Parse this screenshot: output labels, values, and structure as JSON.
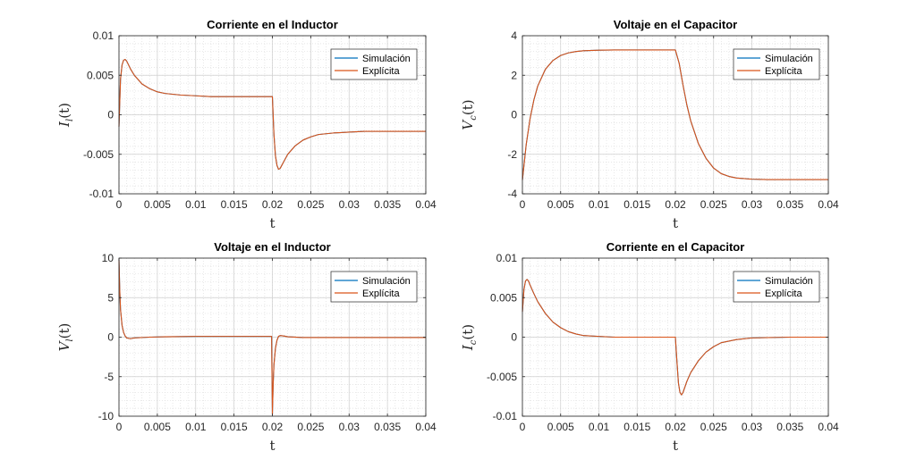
{
  "legend_labels": [
    "Simulación",
    "Explícita"
  ],
  "colors": {
    "series_1": "#0072bd",
    "series_2": "#d95319"
  },
  "chart_data": [
    {
      "type": "line",
      "title": "Corriente en el Inductor",
      "xlabel": "t",
      "ylabel": {
        "main": "I",
        "sub": "l",
        "arg": "(t)"
      },
      "xlim": [
        0,
        0.04
      ],
      "ylim": [
        -0.01,
        0.01
      ],
      "xticks": [
        0,
        0.005,
        0.01,
        0.015,
        0.02,
        0.025,
        0.03,
        0.035,
        0.04
      ],
      "xtick_labels": [
        "0",
        "0.005",
        "0.01",
        "0.015",
        "0.02",
        "0.025",
        "0.03",
        "0.035",
        "0.04"
      ],
      "yticks": [
        -0.01,
        -0.005,
        0,
        0.005,
        0.01
      ],
      "ytick_labels": [
        "-0.01",
        "-0.005",
        "0",
        "0.005",
        "0.01"
      ],
      "grid": true,
      "minor_grid": true,
      "legend_position": "top-right",
      "series": [
        {
          "name": "Simulación",
          "x": [
            0,
            0.0002,
            0.0004,
            0.0006,
            0.0008,
            0.001,
            0.0015,
            0.002,
            0.003,
            0.004,
            0.005,
            0.006,
            0.008,
            0.01,
            0.012,
            0.015,
            0.0199,
            0.02,
            0.0202,
            0.0204,
            0.0206,
            0.0208,
            0.021,
            0.0215,
            0.022,
            0.023,
            0.024,
            0.025,
            0.026,
            0.028,
            0.03,
            0.032,
            0.035,
            0.04
          ],
          "y": [
            -0.0015,
            0.0045,
            0.0063,
            0.0069,
            0.007,
            0.0068,
            0.0058,
            0.005,
            0.0039,
            0.0033,
            0.0029,
            0.0027,
            0.0025,
            0.0024,
            0.0023,
            0.0023,
            0.0023,
            0.0023,
            -0.0025,
            -0.0052,
            -0.0064,
            -0.0069,
            -0.0068,
            -0.0059,
            -0.005,
            -0.0039,
            -0.0032,
            -0.0028,
            -0.0025,
            -0.0023,
            -0.0022,
            -0.0021,
            -0.0021,
            -0.0021
          ]
        },
        {
          "name": "Explícita",
          "x": [
            0,
            0.0002,
            0.0004,
            0.0006,
            0.0008,
            0.001,
            0.0015,
            0.002,
            0.003,
            0.004,
            0.005,
            0.006,
            0.008,
            0.01,
            0.012,
            0.015,
            0.0199,
            0.02,
            0.0202,
            0.0204,
            0.0206,
            0.0208,
            0.021,
            0.0215,
            0.022,
            0.023,
            0.024,
            0.025,
            0.026,
            0.028,
            0.03,
            0.032,
            0.035,
            0.04
          ],
          "y": [
            -0.0015,
            0.0045,
            0.0063,
            0.0069,
            0.007,
            0.0068,
            0.0058,
            0.005,
            0.0039,
            0.0033,
            0.0029,
            0.0027,
            0.0025,
            0.0024,
            0.0023,
            0.0023,
            0.0023,
            0.0023,
            -0.0025,
            -0.0052,
            -0.0064,
            -0.0069,
            -0.0068,
            -0.0059,
            -0.005,
            -0.0039,
            -0.0032,
            -0.0028,
            -0.0025,
            -0.0023,
            -0.0022,
            -0.0021,
            -0.0021,
            -0.0021
          ]
        }
      ]
    },
    {
      "type": "line",
      "title": "Voltaje en el Capacitor",
      "xlabel": "t",
      "ylabel": {
        "main": "V",
        "sub": "c",
        "arg": "(t)"
      },
      "xlim": [
        0,
        0.04
      ],
      "ylim": [
        -4,
        4
      ],
      "xticks": [
        0,
        0.005,
        0.01,
        0.015,
        0.02,
        0.025,
        0.03,
        0.035,
        0.04
      ],
      "xtick_labels": [
        "0",
        "0.005",
        "0.01",
        "0.015",
        "0.02",
        "0.025",
        "0.03",
        "0.035",
        "0.04"
      ],
      "yticks": [
        -4,
        -2,
        0,
        2,
        4
      ],
      "ytick_labels": [
        "-4",
        "-2",
        "0",
        "2",
        "4"
      ],
      "grid": true,
      "minor_grid": true,
      "legend_position": "top-right",
      "series": [
        {
          "name": "Simulación",
          "x": [
            0,
            0.0005,
            0.001,
            0.0015,
            0.002,
            0.003,
            0.004,
            0.005,
            0.006,
            0.007,
            0.008,
            0.01,
            0.012,
            0.015,
            0.0199,
            0.02,
            0.0205,
            0.021,
            0.0215,
            0.022,
            0.023,
            0.024,
            0.025,
            0.026,
            0.027,
            0.028,
            0.03,
            0.032,
            0.035,
            0.04
          ],
          "y": [
            -3.3,
            -1.5,
            -0.2,
            0.75,
            1.45,
            2.3,
            2.75,
            3.0,
            3.13,
            3.2,
            3.24,
            3.27,
            3.28,
            3.28,
            3.28,
            3.28,
            2.6,
            1.5,
            0.5,
            -0.3,
            -1.45,
            -2.2,
            -2.7,
            -2.98,
            -3.12,
            -3.2,
            -3.26,
            -3.28,
            -3.28,
            -3.28
          ]
        },
        {
          "name": "Explícita",
          "x": [
            0,
            0.0005,
            0.001,
            0.0015,
            0.002,
            0.003,
            0.004,
            0.005,
            0.006,
            0.007,
            0.008,
            0.01,
            0.012,
            0.015,
            0.0199,
            0.02,
            0.0205,
            0.021,
            0.0215,
            0.022,
            0.023,
            0.024,
            0.025,
            0.026,
            0.027,
            0.028,
            0.03,
            0.032,
            0.035,
            0.04
          ],
          "y": [
            -3.3,
            -1.5,
            -0.2,
            0.75,
            1.45,
            2.3,
            2.75,
            3.0,
            3.13,
            3.2,
            3.24,
            3.27,
            3.28,
            3.28,
            3.28,
            3.28,
            2.6,
            1.5,
            0.5,
            -0.3,
            -1.45,
            -2.2,
            -2.7,
            -2.98,
            -3.12,
            -3.2,
            -3.26,
            -3.28,
            -3.28,
            -3.28
          ]
        }
      ]
    },
    {
      "type": "line",
      "title": "Voltaje en el Inductor",
      "xlabel": "t",
      "ylabel": {
        "main": "V",
        "sub": "l",
        "arg": "(t)"
      },
      "xlim": [
        0,
        0.04
      ],
      "ylim": [
        -10,
        10
      ],
      "xticks": [
        0,
        0.005,
        0.01,
        0.015,
        0.02,
        0.025,
        0.03,
        0.035,
        0.04
      ],
      "xtick_labels": [
        "0",
        "0.005",
        "0.01",
        "0.015",
        "0.02",
        "0.025",
        "0.03",
        "0.035",
        "0.04"
      ],
      "yticks": [
        -10,
        -5,
        0,
        5,
        10
      ],
      "ytick_labels": [
        "-10",
        "-5",
        "0",
        "5",
        "10"
      ],
      "grid": true,
      "minor_grid": true,
      "legend_position": "top-right",
      "series": [
        {
          "name": "Simulación",
          "x": [
            0,
            0.0001,
            0.0002,
            0.0004,
            0.0006,
            0.0008,
            0.001,
            0.0015,
            0.002,
            0.004,
            0.006,
            0.01,
            0.015,
            0.0199,
            0.02,
            0.0201,
            0.0202,
            0.0204,
            0.0206,
            0.0208,
            0.021,
            0.0215,
            0.022,
            0.024,
            0.026,
            0.03,
            0.035,
            0.04
          ],
          "y": [
            9.8,
            6.0,
            3.5,
            1.5,
            0.6,
            0.15,
            -0.1,
            -0.2,
            -0.1,
            0.0,
            0.05,
            0.1,
            0.1,
            0.1,
            -9.8,
            -6.0,
            -3.5,
            -1.4,
            -0.4,
            0.1,
            0.2,
            0.15,
            0.05,
            -0.05,
            -0.05,
            -0.05,
            -0.05,
            -0.05
          ]
        },
        {
          "name": "Explícita",
          "x": [
            0,
            0.0001,
            0.0002,
            0.0004,
            0.0006,
            0.0008,
            0.001,
            0.0015,
            0.002,
            0.004,
            0.006,
            0.01,
            0.015,
            0.0199,
            0.02,
            0.0201,
            0.0202,
            0.0204,
            0.0206,
            0.0208,
            0.021,
            0.0215,
            0.022,
            0.024,
            0.026,
            0.03,
            0.035,
            0.04
          ],
          "y": [
            9.8,
            6.0,
            3.5,
            1.5,
            0.6,
            0.15,
            -0.1,
            -0.2,
            -0.1,
            0.0,
            0.05,
            0.1,
            0.1,
            0.1,
            -9.8,
            -6.0,
            -3.5,
            -1.4,
            -0.4,
            0.1,
            0.2,
            0.15,
            0.05,
            -0.05,
            -0.05,
            -0.05,
            -0.05,
            -0.05
          ]
        }
      ]
    },
    {
      "type": "line",
      "title": "Corriente en el Capacitor",
      "xlabel": "t",
      "ylabel": {
        "main": "I",
        "sub": "c",
        "arg": "(t)"
      },
      "xlim": [
        0,
        0.04
      ],
      "ylim": [
        -0.01,
        0.01
      ],
      "xticks": [
        0,
        0.005,
        0.01,
        0.015,
        0.02,
        0.025,
        0.03,
        0.035,
        0.04
      ],
      "xtick_labels": [
        "0",
        "0.005",
        "0.01",
        "0.015",
        "0.02",
        "0.025",
        "0.03",
        "0.035",
        "0.04"
      ],
      "yticks": [
        -0.01,
        -0.005,
        0,
        0.005,
        0.01
      ],
      "ytick_labels": [
        "-0.01",
        "-0.005",
        "0",
        "0.005",
        "0.01"
      ],
      "grid": true,
      "minor_grid": true,
      "legend_position": "top-right",
      "series": [
        {
          "name": "Simulación",
          "x": [
            0,
            0.0002,
            0.0004,
            0.0006,
            0.0008,
            0.001,
            0.0015,
            0.002,
            0.003,
            0.004,
            0.005,
            0.006,
            0.007,
            0.008,
            0.01,
            0.012,
            0.015,
            0.0199,
            0.02,
            0.0202,
            0.0204,
            0.0206,
            0.0208,
            0.021,
            0.0215,
            0.022,
            0.023,
            0.024,
            0.025,
            0.026,
            0.028,
            0.03,
            0.035,
            0.04
          ],
          "y": [
            0.0032,
            0.006,
            0.0071,
            0.0073,
            0.0071,
            0.0066,
            0.0055,
            0.0045,
            0.003,
            0.0019,
            0.0012,
            0.0007,
            0.0004,
            0.0002,
            0.0001,
            0.0,
            0.0,
            0.0,
            0.0,
            -0.003,
            -0.0058,
            -0.007,
            -0.0073,
            -0.007,
            -0.0056,
            -0.0045,
            -0.003,
            -0.0019,
            -0.0012,
            -0.0007,
            -0.0003,
            -0.0001,
            0.0,
            0.0
          ]
        },
        {
          "name": "Explícita",
          "x": [
            0,
            0.0002,
            0.0004,
            0.0006,
            0.0008,
            0.001,
            0.0015,
            0.002,
            0.003,
            0.004,
            0.005,
            0.006,
            0.007,
            0.008,
            0.01,
            0.012,
            0.015,
            0.0199,
            0.02,
            0.0202,
            0.0204,
            0.0206,
            0.0208,
            0.021,
            0.0215,
            0.022,
            0.023,
            0.024,
            0.025,
            0.026,
            0.028,
            0.03,
            0.035,
            0.04
          ],
          "y": [
            0.0032,
            0.006,
            0.0071,
            0.0073,
            0.0071,
            0.0066,
            0.0055,
            0.0045,
            0.003,
            0.0019,
            0.0012,
            0.0007,
            0.0004,
            0.0002,
            0.0001,
            0.0,
            0.0,
            0.0,
            0.0,
            -0.003,
            -0.0058,
            -0.007,
            -0.0073,
            -0.007,
            -0.0056,
            -0.0045,
            -0.003,
            -0.0019,
            -0.0012,
            -0.0007,
            -0.0003,
            -0.0001,
            0.0,
            0.0
          ]
        }
      ]
    }
  ]
}
